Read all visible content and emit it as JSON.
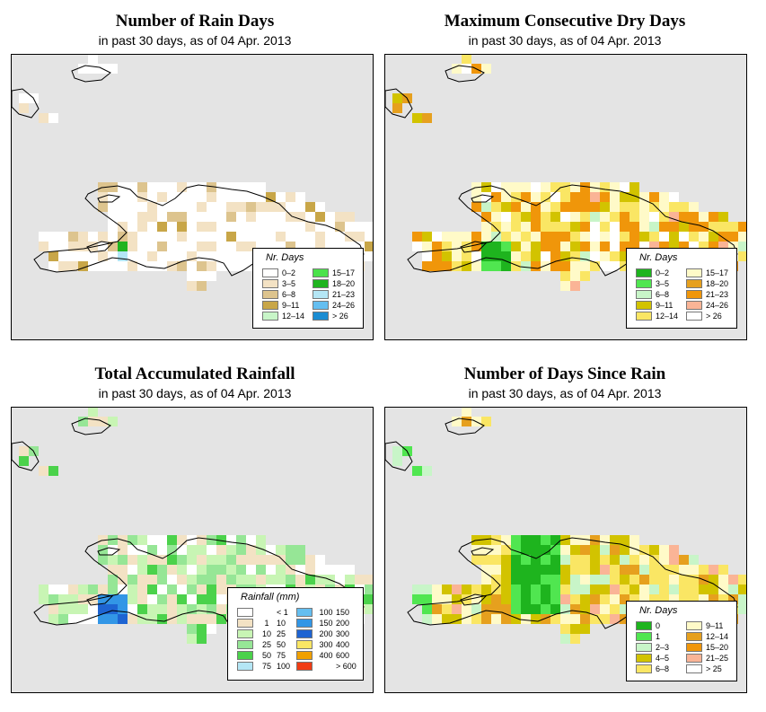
{
  "date_text": "in past 30 days, as of  04 Apr. 2013",
  "panels": [
    {
      "id": "rain_days",
      "title": "Number of Rain Days",
      "subtitle": "in past 30 days, as of  04 Apr. 2013",
      "legend_title": "Nr. Days",
      "legend_items": [
        {
          "label": "0–2",
          "color": "#ffffff"
        },
        {
          "label": "3–5",
          "color": "#f3e2c4"
        },
        {
          "label": "6–8",
          "color": "#ddc48e"
        },
        {
          "label": "9–11",
          "color": "#c8a648"
        },
        {
          "label": "12–14",
          "color": "#c8f5c8"
        },
        {
          "label": "15–17",
          "color": "#4be24b"
        },
        {
          "label": "18–20",
          "color": "#1fb41f"
        },
        {
          "label": "21–23",
          "color": "#b4e6f5"
        },
        {
          "label": "24–26",
          "color": "#64bef0"
        },
        {
          "label": "> 26",
          "color": "#1a8cd2"
        }
      ]
    },
    {
      "id": "max_dry",
      "title": "Maximum Consecutive Dry Days",
      "subtitle": "in past 30 days, as of  04 Apr. 2013",
      "legend_title": "Nr. Days",
      "legend_items": [
        {
          "label": "0–2",
          "color": "#1eb41e"
        },
        {
          "label": "3–5",
          "color": "#50e650"
        },
        {
          "label": "6–8",
          "color": "#c8f5c8"
        },
        {
          "label": "9–11",
          "color": "#d2c300"
        },
        {
          "label": "12–14",
          "color": "#fae664"
        },
        {
          "label": "15–17",
          "color": "#fffac8"
        },
        {
          "label": "18–20",
          "color": "#e6a01e"
        },
        {
          "label": "21–23",
          "color": "#f0960a"
        },
        {
          "label": "24–26",
          "color": "#fab496"
        },
        {
          "label": "> 26",
          "color": "#ffffff"
        }
      ]
    },
    {
      "id": "total_rain",
      "title": "Total Accumulated Rainfall",
      "subtitle": "in past 30 days, as of  04 Apr. 2013",
      "legend_title": "Rainfall (mm)",
      "legend_items": [
        {
          "lo": "",
          "hi": "< 1",
          "color": "#ffffff"
        },
        {
          "lo": "1",
          "hi": "10",
          "color": "#f3e2c4"
        },
        {
          "lo": "10",
          "hi": "25",
          "color": "#c8f5b4"
        },
        {
          "lo": "25",
          "hi": "50",
          "color": "#96e696"
        },
        {
          "lo": "50",
          "hi": "75",
          "color": "#4bd24b"
        },
        {
          "lo": "75",
          "hi": "100",
          "color": "#b4e6f5"
        },
        {
          "lo": "100",
          "hi": "150",
          "color": "#64bef0"
        },
        {
          "lo": "150",
          "hi": "200",
          "color": "#3296e6"
        },
        {
          "lo": "200",
          "hi": "300",
          "color": "#1e64d2"
        },
        {
          "lo": "300",
          "hi": "400",
          "color": "#fae664"
        },
        {
          "lo": "400",
          "hi": "600",
          "color": "#f0a000"
        },
        {
          "lo": "",
          "hi": "> 600",
          "color": "#f03c14"
        }
      ]
    },
    {
      "id": "days_since",
      "title": "Number of Days Since Rain",
      "subtitle": "in past 30 days, as of  04 Apr. 2013",
      "legend_title": "Nr. Days",
      "legend_items": [
        {
          "label": "0",
          "color": "#1eb41e"
        },
        {
          "label": "1",
          "color": "#50e650"
        },
        {
          "label": "2–3",
          "color": "#c8f5c8"
        },
        {
          "label": "4–5",
          "color": "#d2c300"
        },
        {
          "label": "6–8",
          "color": "#fae664"
        },
        {
          "label": "9–11",
          "color": "#fffac8"
        },
        {
          "label": "12–14",
          "color": "#e6a01e"
        },
        {
          "label": "15–20",
          "color": "#f0960a"
        },
        {
          "label": "21–25",
          "color": "#fab496"
        },
        {
          "label": "> 25",
          "color": "#ffffff"
        }
      ]
    }
  ],
  "colors": {
    "ocean": "#e4e4e4",
    "coast": "#000000"
  }
}
